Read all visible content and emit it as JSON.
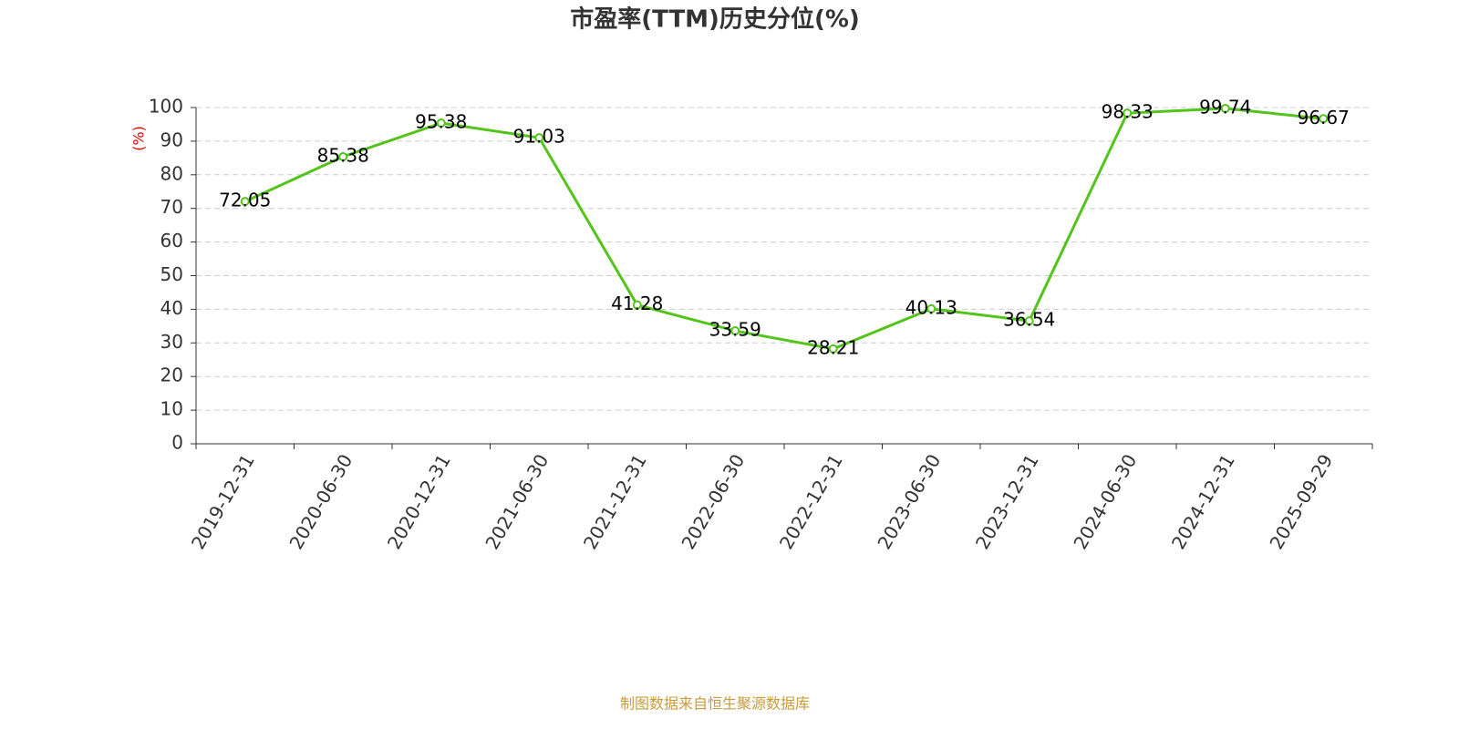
{
  "chart_data": {
    "type": "line",
    "title": "市盈率(TTM)历史分位(%)",
    "y_label": "(%)",
    "categories": [
      "2019-12-31",
      "2020-06-30",
      "2020-12-31",
      "2021-06-30",
      "2021-12-31",
      "2022-06-30",
      "2022-12-31",
      "2023-06-30",
      "2023-12-31",
      "2024-06-30",
      "2024-12-31",
      "2025-09-29"
    ],
    "series": [
      {
        "name": "市盈率(TTM)历史分位",
        "color": "#52c41a",
        "values": [
          72.05,
          85.38,
          95.38,
          91.03,
          41.28,
          33.59,
          28.21,
          40.13,
          36.54,
          98.33,
          99.74,
          96.67
        ]
      }
    ],
    "ylim": [
      0,
      100
    ],
    "yticks": [
      0,
      10,
      20,
      30,
      40,
      50,
      60,
      70,
      80,
      90,
      100
    ],
    "grid": true,
    "source": "制图数据来自恒生聚源数据库"
  }
}
